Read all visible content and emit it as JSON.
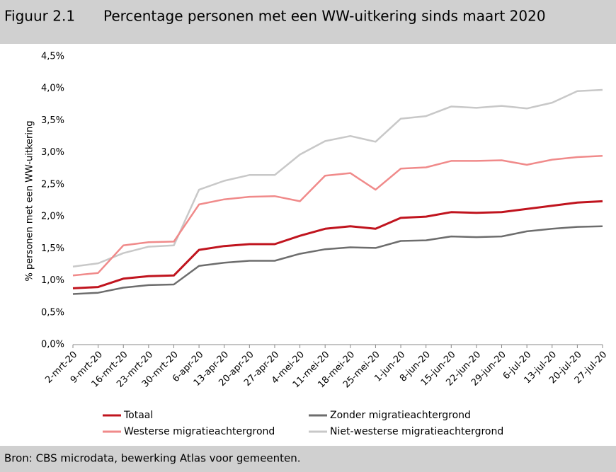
{
  "chart_data": {
    "type": "line",
    "figure_label": "Figuur 2.1",
    "title": "Percentage personen met een WW-uitkering sinds maart 2020",
    "ylabel": "% personen met een WW-uitkering",
    "source": "Bron: CBS microdata, bewerking Atlas voor gemeenten.",
    "categories": [
      "2-mrt-20",
      "9-mrt-20",
      "16-mrt-20",
      "23-mrt-20",
      "30-mrt-20",
      "6-apr-20",
      "13-apr-20",
      "20-apr-20",
      "27-apr-20",
      "4-mei-20",
      "11-mei-20",
      "18-mei-20",
      "25-mei-20",
      "1-jun-20",
      "8-jun-20",
      "15-jun-20",
      "22-jun-20",
      "29-jun-20",
      "6-jul-20",
      "13-jul-20",
      "20-jul-20",
      "27-jul-20"
    ],
    "series": [
      {
        "name": "Totaal",
        "color": "#c0141e",
        "values": [
          0.88,
          0.9,
          1.03,
          1.07,
          1.08,
          1.48,
          1.54,
          1.57,
          1.57,
          1.7,
          1.81,
          1.85,
          1.81,
          1.98,
          2.0,
          2.07,
          2.06,
          2.07,
          2.12,
          2.17,
          2.22,
          2.24
        ]
      },
      {
        "name": "Zonder migratieachtergrond",
        "color": "#6d6d6d",
        "values": [
          0.79,
          0.81,
          0.89,
          0.93,
          0.94,
          1.23,
          1.28,
          1.31,
          1.31,
          1.42,
          1.49,
          1.52,
          1.51,
          1.62,
          1.63,
          1.69,
          1.68,
          1.69,
          1.77,
          1.81,
          1.84,
          1.85
        ]
      },
      {
        "name": "Westerse migratieachtergrond",
        "color": "#f08a8a",
        "values": [
          1.08,
          1.12,
          1.55,
          1.6,
          1.61,
          2.19,
          2.27,
          2.31,
          2.32,
          2.24,
          2.64,
          2.68,
          2.42,
          2.75,
          2.77,
          2.87,
          2.87,
          2.88,
          2.81,
          2.89,
          2.93,
          2.95
        ]
      },
      {
        "name": "Niet-westerse migratieachtergrond",
        "color": "#c8c8c8",
        "values": [
          1.22,
          1.27,
          1.43,
          1.53,
          1.55,
          2.42,
          2.56,
          2.65,
          2.65,
          2.97,
          3.18,
          3.26,
          3.17,
          3.53,
          3.57,
          3.72,
          3.7,
          3.73,
          3.69,
          3.78,
          3.96,
          3.98
        ]
      }
    ],
    "ylim": [
      0,
      4.5
    ],
    "yticks": [
      {
        "value": 0,
        "label": "0,0%"
      },
      {
        "value": 0.5,
        "label": "0,5%"
      },
      {
        "value": 1,
        "label": "1,0%"
      },
      {
        "value": 1.5,
        "label": "1,5%"
      },
      {
        "value": 2,
        "label": "2,0%"
      },
      {
        "value": 2.5,
        "label": "2,5%"
      },
      {
        "value": 3,
        "label": "3,0%"
      },
      {
        "value": 3.5,
        "label": "3,5%"
      },
      {
        "value": 4,
        "label": "4,0%"
      },
      {
        "value": 4.5,
        "label": "4,5%"
      }
    ],
    "grid": false,
    "legend": "bottom"
  }
}
